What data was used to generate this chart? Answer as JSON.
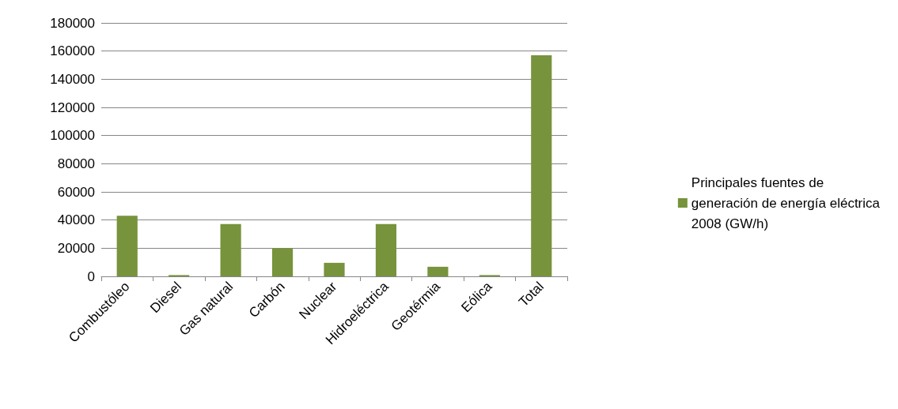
{
  "chart_data": {
    "type": "bar",
    "categories": [
      "Combustóleo",
      "Diesel",
      "Gas natural",
      "Carbón",
      "Nuclear",
      "Hidroeléctrica",
      "Geotérmia",
      "Eólica",
      "Total"
    ],
    "series": [
      {
        "name": "Principales fuentes de generación de energía eléctrica 2008 (GW/h)",
        "color": "#77933c",
        "values": [
          43000,
          900,
          37200,
          20000,
          9600,
          37200,
          6800,
          900,
          157000
        ]
      }
    ],
    "ylim": [
      0,
      180000
    ],
    "yticks": [
      0,
      20000,
      40000,
      60000,
      80000,
      100000,
      120000,
      140000,
      160000,
      180000
    ],
    "grid": "y",
    "legend": "right"
  }
}
